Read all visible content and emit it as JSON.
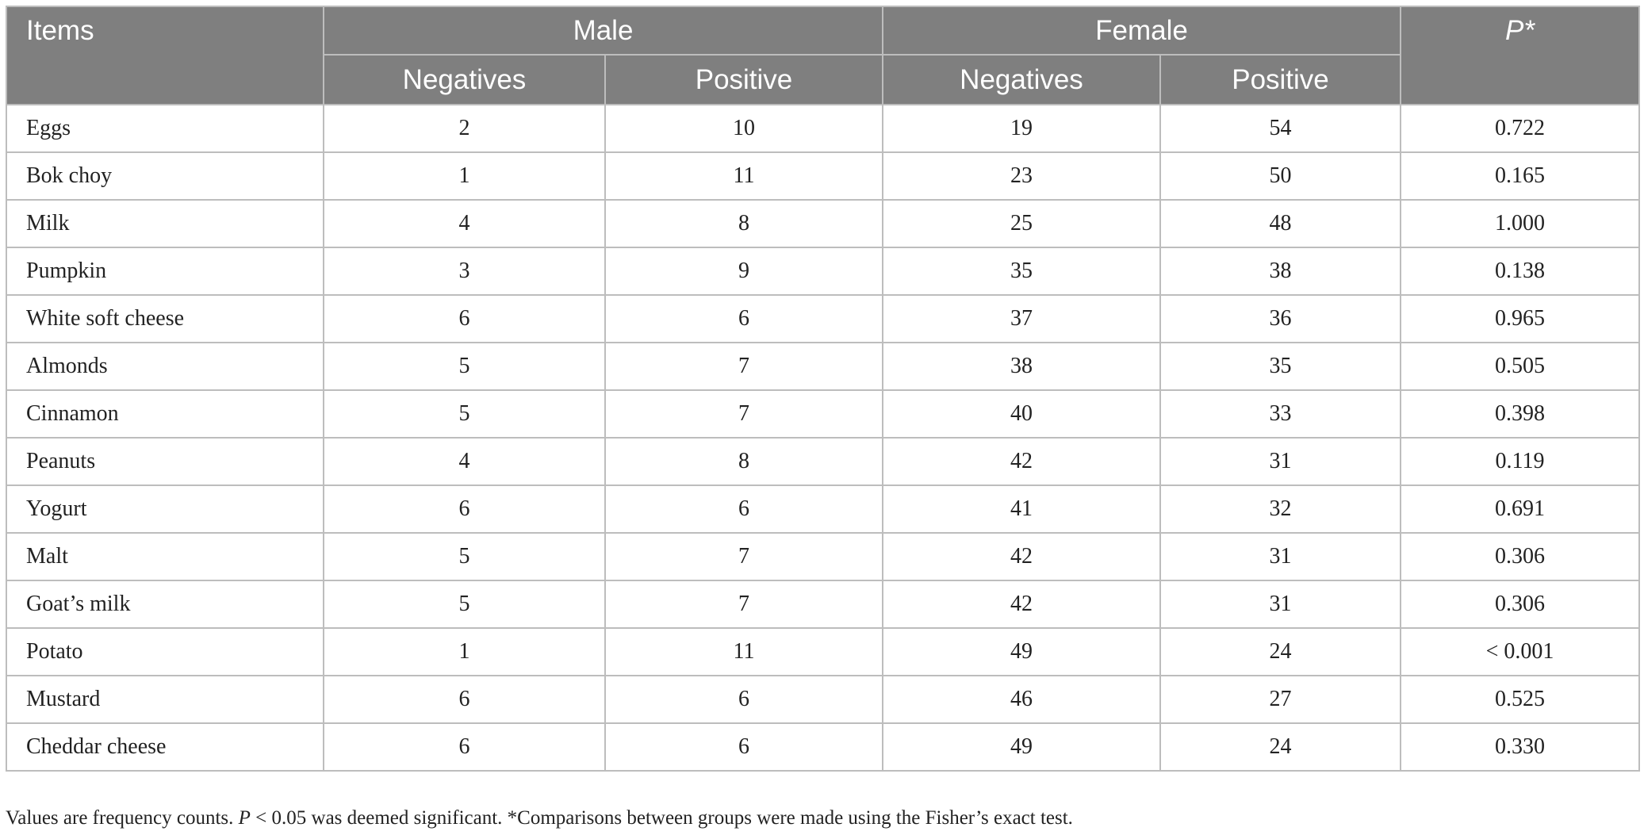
{
  "header": {
    "items": "Items",
    "male": "Male",
    "female": "Female",
    "p": "P*",
    "negatives": "Negatives",
    "positive": "Positive"
  },
  "rows": [
    {
      "item": "Eggs",
      "male_neg": "2",
      "male_pos": "10",
      "female_neg": "19",
      "female_pos": "54",
      "p": "0.722"
    },
    {
      "item": "Bok choy",
      "male_neg": "1",
      "male_pos": "11",
      "female_neg": "23",
      "female_pos": "50",
      "p": "0.165"
    },
    {
      "item": "Milk",
      "male_neg": "4",
      "male_pos": "8",
      "female_neg": "25",
      "female_pos": "48",
      "p": "1.000"
    },
    {
      "item": "Pumpkin",
      "male_neg": "3",
      "male_pos": "9",
      "female_neg": "35",
      "female_pos": "38",
      "p": "0.138"
    },
    {
      "item": "White soft cheese",
      "male_neg": "6",
      "male_pos": "6",
      "female_neg": "37",
      "female_pos": "36",
      "p": "0.965"
    },
    {
      "item": "Almonds",
      "male_neg": "5",
      "male_pos": "7",
      "female_neg": "38",
      "female_pos": "35",
      "p": "0.505"
    },
    {
      "item": "Cinnamon",
      "male_neg": "5",
      "male_pos": "7",
      "female_neg": "40",
      "female_pos": "33",
      "p": "0.398"
    },
    {
      "item": "Peanuts",
      "male_neg": "4",
      "male_pos": "8",
      "female_neg": "42",
      "female_pos": "31",
      "p": "0.119"
    },
    {
      "item": "Yogurt",
      "male_neg": "6",
      "male_pos": "6",
      "female_neg": "41",
      "female_pos": "32",
      "p": "0.691"
    },
    {
      "item": "Malt",
      "male_neg": "5",
      "male_pos": "7",
      "female_neg": "42",
      "female_pos": "31",
      "p": "0.306"
    },
    {
      "item": "Goat’s milk",
      "male_neg": "5",
      "male_pos": "7",
      "female_neg": "42",
      "female_pos": "31",
      "p": "0.306"
    },
    {
      "item": "Potato",
      "male_neg": "1",
      "male_pos": "11",
      "female_neg": "49",
      "female_pos": "24",
      "p": "< 0.001"
    },
    {
      "item": "Mustard",
      "male_neg": "6",
      "male_pos": "6",
      "female_neg": "46",
      "female_pos": "27",
      "p": "0.525"
    },
    {
      "item": "Cheddar cheese",
      "male_neg": "6",
      "male_pos": "6",
      "female_neg": "49",
      "female_pos": "24",
      "p": "0.330"
    }
  ],
  "footnote": "Values are frequency counts. P < 0.05 was deemed significant. *Comparisons between groups were made using the Fisher’s exact test."
}
